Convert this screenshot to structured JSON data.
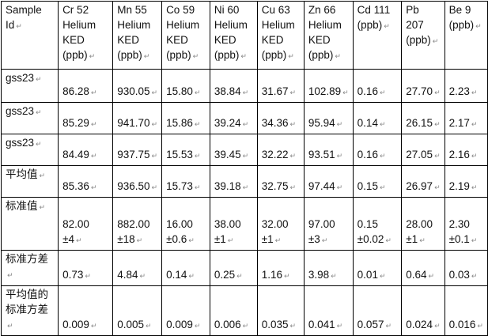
{
  "table": {
    "headers": [
      "Sample Id",
      "Cr 52\nHelium\nKED\n(ppb)",
      "Mn 55\nHelium\nKED\n(ppb)",
      "Co 59\nHelium\nKED\n(ppb)",
      "Ni 60\nHelium\nKED\n(ppb)",
      "Cu 63\nHelium\nKED\n(ppb)",
      "Zn 66\nHelium\nKED\n(ppb)",
      "Cd 111\n(ppb)",
      "Pb\n207\n(ppb)",
      "Be 9\n(ppb)"
    ],
    "rows": [
      {
        "label": "gss23",
        "values": [
          "86.28",
          "930.05",
          "15.80",
          "38.84",
          "31.67",
          "102.89",
          "0.16",
          "27.70",
          "2.23"
        ]
      },
      {
        "label": "gss23",
        "values": [
          "85.29",
          "941.70",
          "15.86",
          "39.24",
          "34.36",
          "95.94",
          "0.14",
          "26.15",
          "2.17"
        ]
      },
      {
        "label": "gss23",
        "values": [
          "84.49",
          "937.75",
          "15.53",
          "39.45",
          "32.22",
          "93.51",
          "0.16",
          "27.05",
          "2.16"
        ]
      },
      {
        "label": "平均值",
        "values": [
          "85.36",
          "936.50",
          "15.73",
          "39.18",
          "32.75",
          "97.44",
          "0.15",
          "26.97",
          "2.19"
        ]
      },
      {
        "label": "标准值",
        "values": [
          "82.00\n±4",
          "882.00\n±18",
          "16.00\n±0.6",
          "38.00\n±1",
          "32.00\n±1",
          "97.00\n±3",
          "0.15\n±0.02",
          "28.00\n±1",
          "2.30\n±0.1"
        ]
      },
      {
        "label": "标准方差",
        "values": [
          "0.73",
          "4.84",
          "0.14",
          "0.25",
          "1.16",
          "3.98",
          "0.01",
          "0.64",
          "0.03"
        ]
      },
      {
        "label": "平均值的\n标准方差",
        "values": [
          "0.009",
          "0.005",
          "0.009",
          "0.006",
          "0.035",
          "0.041",
          "0.057",
          "0.024",
          "0.016"
        ]
      }
    ]
  }
}
